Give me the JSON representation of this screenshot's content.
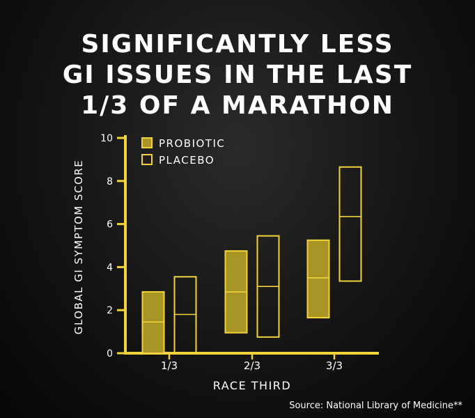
{
  "title_lines": [
    "SIGNIFICANTLY LESS",
    "GI ISSUES IN THE LAST",
    "1/3 OF A MARATHON"
  ],
  "source": "Source: National Library of Medicine**",
  "colors": {
    "accent": "#f2d43a",
    "probiotic_fill": "#a99526",
    "text": "#ffffff"
  },
  "chart_data": {
    "type": "box",
    "xlabel": "RACE THIRD",
    "ylabel": "GLOBAL GI SYMPTOM SCORE",
    "ylim": [
      0,
      10
    ],
    "yticks": [
      0,
      2,
      4,
      6,
      8,
      10
    ],
    "categories": [
      "1/3",
      "2/3",
      "3/3"
    ],
    "legend_position": "top-left",
    "series": [
      {
        "name": "PROBIOTIC",
        "filled": true,
        "boxes": [
          {
            "low": 0,
            "median": 1.45,
            "high": 2.85
          },
          {
            "low": 0.95,
            "median": 2.85,
            "high": 4.75
          },
          {
            "low": 1.65,
            "median": 3.5,
            "high": 5.25
          }
        ]
      },
      {
        "name": "PLACEBO",
        "filled": false,
        "boxes": [
          {
            "low": 0,
            "median": 1.8,
            "high": 3.55
          },
          {
            "low": 0.75,
            "median": 3.1,
            "high": 5.45
          },
          {
            "low": 3.35,
            "median": 6.35,
            "high": 8.65
          }
        ]
      }
    ]
  }
}
